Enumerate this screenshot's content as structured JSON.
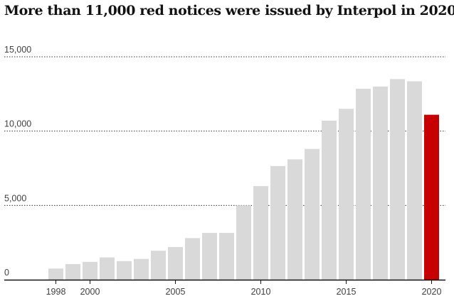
{
  "chart_data": {
    "type": "bar",
    "title": "More than 11,000 red notices were issued by Interpol in 2020",
    "xlabel": "",
    "ylabel": "",
    "ylim": [
      0,
      15000
    ],
    "y_ticks": [
      {
        "value": 0,
        "label": "0"
      },
      {
        "value": 5000,
        "label": "5,000"
      },
      {
        "value": 10000,
        "label": "10,000"
      },
      {
        "value": 15000,
        "label": "15,000"
      }
    ],
    "x_ticks": [
      "1998",
      "2000",
      "2005",
      "2010",
      "2015",
      "2020"
    ],
    "categories": [
      "1998",
      "1999",
      "2000",
      "2001",
      "2002",
      "2003",
      "2004",
      "2005",
      "2006",
      "2007",
      "2008",
      "2009",
      "2010",
      "2011",
      "2012",
      "2013",
      "2014",
      "2015",
      "2016",
      "2017",
      "2018",
      "2019",
      "2020"
    ],
    "values": [
      750,
      1050,
      1200,
      1500,
      1250,
      1400,
      1950,
      2200,
      2800,
      3150,
      3150,
      5000,
      6300,
      7650,
      8100,
      8800,
      10700,
      11500,
      12850,
      13000,
      13500,
      13350,
      11100
    ],
    "grid": true,
    "highlight_category": "2020",
    "colors": {
      "bar": "#d9d9d9",
      "highlight": "#c70000",
      "axis": "#121212",
      "grid": "#333333",
      "text": "#3f3f3f"
    }
  }
}
